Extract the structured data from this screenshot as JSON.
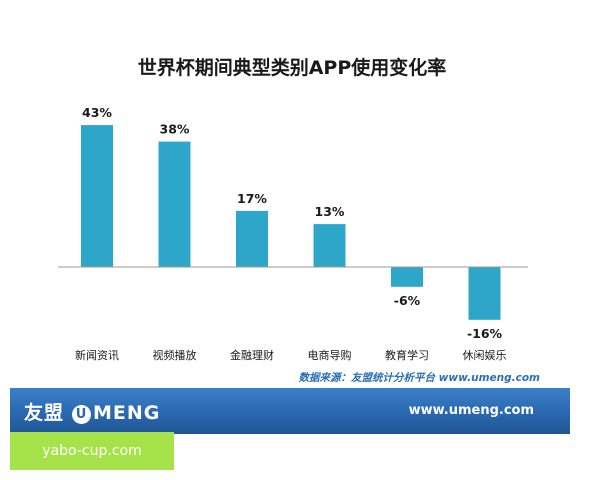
{
  "chart_data": {
    "type": "bar",
    "title": "世界杯期间典型类别APP使用变化率",
    "categories": [
      "新闻资讯",
      "视频播放",
      "金融理财",
      "电商导购",
      "教育学习",
      "休闲娱乐"
    ],
    "values": [
      43,
      38,
      17,
      13,
      -6,
      -16
    ],
    "value_labels": [
      "43%",
      "38%",
      "17%",
      "13%",
      "-6%",
      "-16%"
    ],
    "bar_color": "#2ea6c9",
    "ylim": [
      -20,
      45
    ],
    "grid": false,
    "legend": "none"
  },
  "source_note": "数据来源：友盟统计分析平台 www.umeng.com",
  "footer": {
    "logo_text": "友盟",
    "logo_mark": "U",
    "logo_word": "MENG",
    "url": "www.umeng.com",
    "background_color": "#2a68b0"
  },
  "watermark": {
    "text": "yabo-cup.com",
    "color": "#a6e34a"
  }
}
